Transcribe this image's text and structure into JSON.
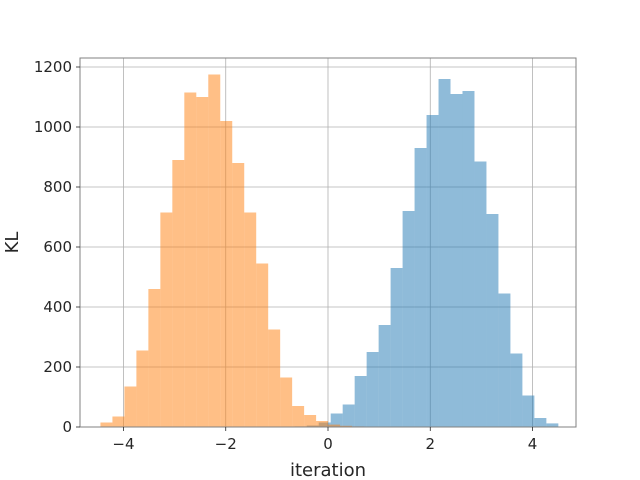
{
  "chart_data": {
    "type": "bar",
    "title": "",
    "xlabel": "iteration",
    "ylabel": "KL",
    "xlim": [
      -4.85,
      4.85
    ],
    "ylim": [
      0,
      1230
    ],
    "xticks": [
      -4,
      -2,
      0,
      2,
      4
    ],
    "xtick_labels": [
      "−4",
      "−2",
      "0",
      "2",
      "4"
    ],
    "yticks": [
      0,
      200,
      400,
      600,
      800,
      1000,
      1200
    ],
    "ytick_labels": [
      "0",
      "200",
      "400",
      "600",
      "800",
      "1000",
      "1200"
    ],
    "grid": true,
    "legend": "none",
    "series": [
      {
        "color": "#1f77b4",
        "opacity": 0.5,
        "bin_start": -0.65,
        "bin_width": 0.2343,
        "values": [
          2,
          5,
          15,
          45,
          75,
          170,
          250,
          340,
          530,
          720,
          930,
          1040,
          1160,
          1110,
          1120,
          885,
          710,
          445,
          245,
          105,
          30,
          12
        ]
      },
      {
        "color": "#ff7f0e",
        "opacity": 0.5,
        "bin_start": -4.45,
        "bin_width": 0.2343,
        "values": [
          15,
          35,
          135,
          255,
          460,
          715,
          890,
          1115,
          1100,
          1175,
          1020,
          880,
          715,
          545,
          325,
          165,
          70,
          40,
          20,
          8,
          4,
          2
        ]
      }
    ]
  }
}
